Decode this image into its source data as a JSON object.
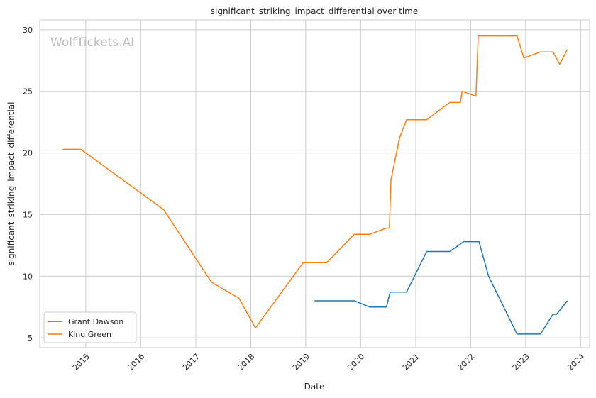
{
  "watermark": "WolfTickets.AI",
  "chart_data": {
    "type": "line",
    "title": "significant_striking_impact_differential over time",
    "xlabel": "Date",
    "ylabel": "significant_striking_impact_differential",
    "xlim": [
      "2014-03-01",
      "2024-03-01"
    ],
    "ylim": [
      4.2,
      30.8
    ],
    "x_ticks": [
      "2015",
      "2016",
      "2017",
      "2018",
      "2019",
      "2020",
      "2021",
      "2022",
      "2023",
      "2024"
    ],
    "y_ticks": [
      5,
      10,
      15,
      20,
      25,
      30
    ],
    "grid": true,
    "legend_position": "lower-left",
    "series": [
      {
        "name": "Grant Dawson",
        "color": "#1f77b4",
        "points": [
          [
            "2019-03-01",
            8.0
          ],
          [
            "2019-11-20",
            8.0
          ],
          [
            "2020-03-01",
            7.5
          ],
          [
            "2020-06-20",
            7.5
          ],
          [
            "2020-07-15",
            8.7
          ],
          [
            "2020-11-01",
            8.7
          ],
          [
            "2021-03-15",
            12.0
          ],
          [
            "2021-08-15",
            12.0
          ],
          [
            "2021-11-15",
            12.8
          ],
          [
            "2022-02-25",
            12.8
          ],
          [
            "2022-04-30",
            10.0
          ],
          [
            "2022-11-05",
            5.3
          ],
          [
            "2023-04-10",
            5.3
          ],
          [
            "2023-07-01",
            6.9
          ],
          [
            "2023-07-25",
            6.9
          ],
          [
            "2023-10-05",
            8.0
          ]
        ]
      },
      {
        "name": "King Green",
        "color": "#ff7f0e",
        "points": [
          [
            "2014-08-01",
            20.3
          ],
          [
            "2014-11-28",
            20.3
          ],
          [
            "2016-06-01",
            15.4
          ],
          [
            "2017-04-15",
            9.5
          ],
          [
            "2017-10-15",
            8.2
          ],
          [
            "2018-02-01",
            5.8
          ],
          [
            "2018-12-15",
            11.1
          ],
          [
            "2019-05-20",
            11.1
          ],
          [
            "2019-11-20",
            13.4
          ],
          [
            "2020-03-01",
            13.4
          ],
          [
            "2020-06-20",
            13.9
          ],
          [
            "2020-07-10",
            13.9
          ],
          [
            "2020-07-20",
            17.8
          ],
          [
            "2020-09-15",
            21.2
          ],
          [
            "2020-11-01",
            22.7
          ],
          [
            "2021-03-15",
            22.7
          ],
          [
            "2021-08-15",
            24.1
          ],
          [
            "2021-10-25",
            24.1
          ],
          [
            "2021-11-05",
            25.0
          ],
          [
            "2022-02-05",
            24.6
          ],
          [
            "2022-02-20",
            29.5
          ],
          [
            "2022-11-05",
            29.5
          ],
          [
            "2022-12-20",
            27.7
          ],
          [
            "2023-04-10",
            28.2
          ],
          [
            "2023-07-01",
            28.2
          ],
          [
            "2023-08-15",
            27.2
          ],
          [
            "2023-10-05",
            28.4
          ]
        ]
      }
    ]
  }
}
